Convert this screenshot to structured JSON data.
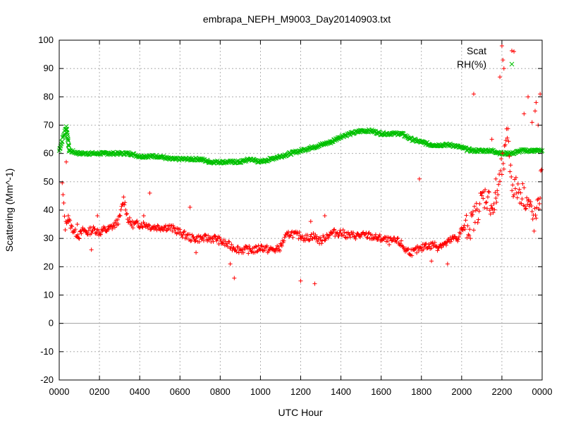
{
  "chart_data": {
    "type": "scatter",
    "title": "embrapa_NEPH_M9003_Day20140903.txt",
    "xlabel": "UTC Hour",
    "ylabel": "Scattering (Mm^-1)",
    "xlim": [
      0,
      24
    ],
    "ylim": [
      -20,
      100
    ],
    "x_ticks": [
      0,
      2,
      4,
      6,
      8,
      10,
      12,
      14,
      16,
      18,
      20,
      22,
      24
    ],
    "x_tick_labels": [
      "0000",
      "0200",
      "0400",
      "0600",
      "0800",
      "1000",
      "1200",
      "1400",
      "1600",
      "1800",
      "2000",
      "2200",
      "0000"
    ],
    "y_ticks": [
      -20,
      -10,
      0,
      10,
      20,
      30,
      40,
      50,
      60,
      70,
      80,
      90,
      100
    ],
    "y_tick_labels": [
      "-20",
      "-10",
      "0",
      "10",
      "20",
      "30",
      "40",
      "50",
      "60",
      "70",
      "80",
      "90",
      "100"
    ],
    "grid": true,
    "legend_position": "top-right",
    "series": [
      {
        "name": "Scat",
        "marker": "+",
        "color": "#ff0000",
        "x": [
          0.15,
          0.3,
          0.4,
          0.5,
          0.6,
          0.7,
          0.8,
          1.0,
          1.2,
          1.4,
          1.6,
          1.8,
          2.0,
          2.2,
          2.4,
          2.6,
          2.8,
          3.0,
          3.2,
          3.3,
          3.4,
          3.5,
          3.6,
          3.7,
          3.8,
          4.0,
          4.3,
          4.6,
          5.0,
          5.4,
          5.8,
          6.0,
          6.3,
          6.6,
          7.0,
          7.4,
          7.8,
          8.0,
          8.3,
          8.6,
          9.0,
          9.4,
          9.8,
          10.0,
          10.4,
          10.8,
          11.0,
          11.2,
          11.5,
          11.8,
          12.0,
          12.3,
          12.6,
          12.8,
          13.0,
          13.3,
          13.6,
          14.0,
          14.4,
          14.8,
          15.0,
          15.4,
          15.8,
          16.0,
          16.4,
          16.8,
          17.0,
          17.2,
          17.6,
          17.8,
          18.0,
          18.2,
          18.4,
          18.6,
          18.8,
          19.0,
          19.2,
          19.4,
          19.6,
          19.8,
          20.0,
          20.2,
          20.4,
          20.6,
          20.8,
          21.0,
          21.2,
          21.4,
          21.6,
          21.8,
          22.0,
          22.1,
          22.2,
          22.3,
          22.4,
          22.5,
          22.6,
          22.8,
          23.0,
          23.2,
          23.4,
          23.5,
          23.6,
          23.8,
          24.0
        ],
        "y": [
          49,
          34,
          37,
          36,
          34,
          33,
          32,
          31,
          33,
          32,
          33,
          33,
          32,
          33,
          33,
          34,
          35,
          37,
          44,
          41,
          37,
          36,
          35,
          35,
          35,
          35,
          35,
          34,
          34,
          34,
          33,
          32,
          31,
          30,
          30,
          30,
          30,
          29,
          28,
          27,
          26,
          26,
          26,
          27,
          26,
          26,
          27,
          30,
          32,
          31,
          31,
          30,
          31,
          30,
          29,
          31,
          32,
          32,
          31,
          31,
          31,
          31,
          30,
          30,
          29,
          29,
          28,
          26,
          25,
          26,
          26,
          28,
          27,
          28,
          27,
          28,
          28,
          29,
          30,
          30,
          33,
          34,
          34,
          37,
          40,
          44,
          45,
          43,
          40,
          47,
          55,
          57,
          62,
          70,
          55,
          50,
          48,
          47,
          46,
          44,
          41,
          38,
          36,
          40,
          55
        ],
        "outliers_x": [
          0.35,
          0.45,
          0.9,
          1.6,
          1.9,
          4.2,
          4.5,
          6.5,
          6.8,
          8.5,
          8.7,
          12.0,
          12.5,
          12.7,
          13.2,
          17.9,
          18.5,
          19.3,
          20.6,
          21.5,
          21.7,
          21.9,
          22.0,
          22.05,
          22.1,
          22.6,
          23.1,
          23.3,
          23.5,
          23.65,
          23.7,
          23.8,
          23.9
        ],
        "outliers_y": [
          57,
          38,
          35,
          26,
          38,
          38,
          46,
          41,
          25,
          21,
          16,
          15,
          36,
          14,
          38,
          51,
          22,
          21,
          81,
          65,
          51,
          87,
          98,
          93,
          90,
          96,
          74,
          80,
          71,
          75,
          78,
          70,
          81
        ]
      },
      {
        "name": "RH(%)",
        "marker": "x",
        "color": "#00c000",
        "x": [
          0.0,
          0.35,
          0.5,
          1.0,
          1.5,
          2.0,
          2.5,
          3.0,
          3.5,
          4.0,
          4.5,
          5.0,
          5.5,
          6.0,
          6.5,
          7.0,
          7.5,
          8.0,
          8.5,
          9.0,
          9.5,
          10.0,
          10.5,
          11.0,
          11.5,
          12.0,
          12.5,
          13.0,
          13.5,
          14.0,
          14.5,
          15.0,
          15.5,
          16.0,
          16.5,
          17.0,
          17.5,
          18.0,
          18.5,
          19.0,
          19.5,
          20.0,
          20.5,
          21.0,
          21.5,
          22.0,
          22.5,
          23.0,
          23.5,
          24.0
        ],
        "y": [
          61,
          69.5,
          61,
          60,
          60,
          60,
          60,
          60,
          60,
          59,
          59,
          59,
          58,
          58,
          58,
          58,
          57,
          57,
          57,
          57,
          58,
          57,
          58,
          59,
          60,
          61,
          62,
          63,
          64,
          66,
          67,
          68,
          68,
          67,
          67,
          67,
          65,
          64,
          63,
          63,
          63,
          62,
          61,
          61,
          61,
          60,
          60,
          61,
          61,
          61
        ]
      }
    ]
  }
}
